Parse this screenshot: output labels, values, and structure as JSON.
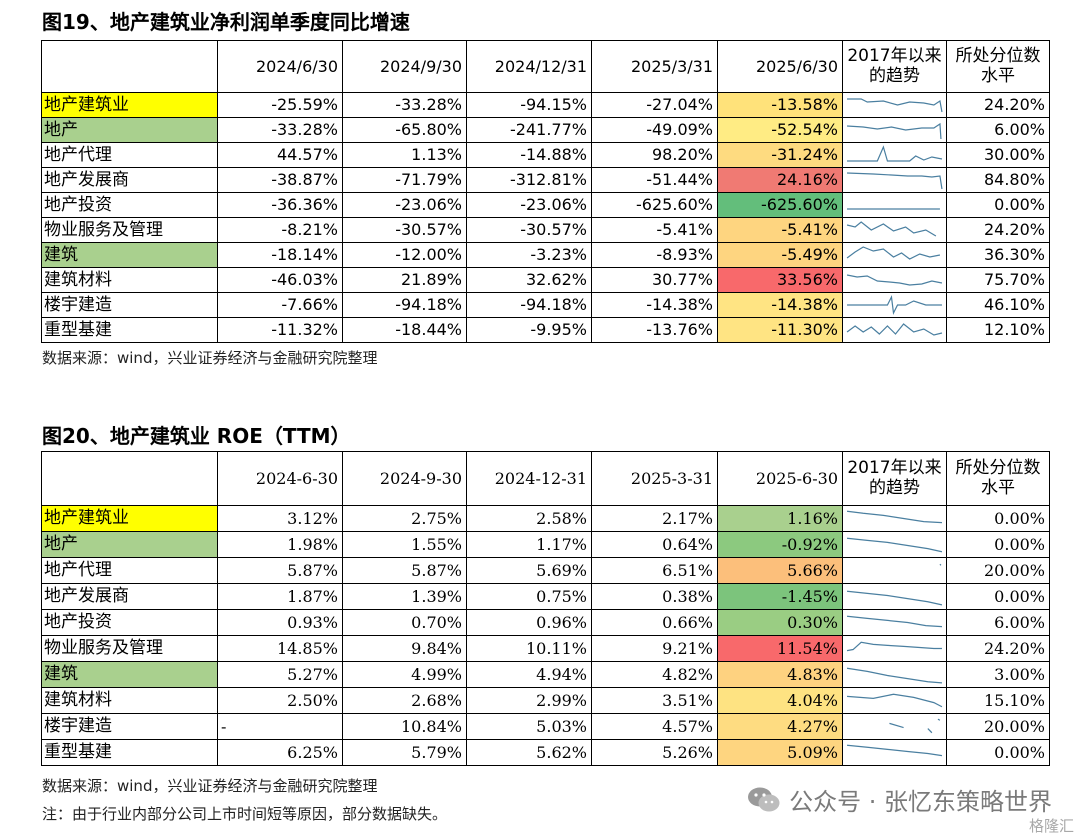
{
  "table1": {
    "title": "图19、地产建筑业净利润单季度同比增速",
    "columns": [
      "2024/6/30",
      "2024/9/30",
      "2024/12/31",
      "2025/3/31",
      "2025/6/30"
    ],
    "trend_header": "2017年以来的趋势",
    "pct_header": "所处分位数水平",
    "rows": [
      {
        "name": "地产建筑业",
        "hl": "yellow",
        "v": [
          "-25.59%",
          "-33.28%",
          "-94.15%",
          "-27.04%",
          "-13.58%"
        ],
        "color": "#ffe27a",
        "pct": "24.20%"
      },
      {
        "name": "地产",
        "hl": "green",
        "v": [
          "-33.28%",
          "-65.80%",
          "-241.77%",
          "-49.09%",
          "-52.54%"
        ],
        "color": "#ffec84",
        "pct": "6.00%"
      },
      {
        "name": "地产代理",
        "hl": "",
        "v": [
          "44.57%",
          "1.13%",
          "-14.88%",
          "98.20%",
          "-31.24%"
        ],
        "color": "#fedb80",
        "pct": "30.00%"
      },
      {
        "name": "地产发展商",
        "hl": "",
        "v": [
          "-38.87%",
          "-71.79%",
          "-312.81%",
          "-51.44%",
          "24.16%"
        ],
        "color": "#f07a73",
        "pct": "84.80%"
      },
      {
        "name": "地产投资",
        "hl": "",
        "v": [
          "-36.36%",
          "-23.06%",
          "-23.06%",
          "-625.60%",
          "-625.60%"
        ],
        "color": "#63be7b",
        "pct": "0.00%"
      },
      {
        "name": "物业服务及管理",
        "hl": "",
        "v": [
          "-8.21%",
          "-30.57%",
          "-30.57%",
          "-5.41%",
          "-5.41%"
        ],
        "color": "#fed580",
        "pct": "24.20%"
      },
      {
        "name": "建筑",
        "hl": "green",
        "v": [
          "-18.14%",
          "-12.00%",
          "-3.23%",
          "-8.93%",
          "-5.49%"
        ],
        "color": "#fed580",
        "pct": "36.30%"
      },
      {
        "name": "建筑材料",
        "hl": "",
        "v": [
          "-46.03%",
          "21.89%",
          "32.62%",
          "30.77%",
          "33.56%"
        ],
        "color": "#f8696b",
        "pct": "75.70%"
      },
      {
        "name": "楼宇建造",
        "hl": "",
        "v": [
          "-7.66%",
          "-94.18%",
          "-94.18%",
          "-14.38%",
          "-14.38%"
        ],
        "color": "#ffe483",
        "pct": "46.10%"
      },
      {
        "name": "重型基建",
        "hl": "",
        "v": [
          "-11.32%",
          "-18.44%",
          "-9.95%",
          "-13.76%",
          "-11.30%"
        ],
        "color": "#ffe483",
        "pct": "12.10%"
      }
    ],
    "source": "数据来源：wind，兴业证券经济与金融研究院整理"
  },
  "table2": {
    "title": "图20、地产建筑业 ROE（TTM）",
    "columns": [
      "2024-6-30",
      "2024-9-30",
      "2024-12-31",
      "2025-3-31",
      "2025-6-30"
    ],
    "trend_header": "2017年以来的趋势",
    "pct_header": "所处分位数水平",
    "rows": [
      {
        "name": "地产建筑业",
        "hl": "yellow",
        "v": [
          "3.12%",
          "2.75%",
          "2.58%",
          "2.17%",
          "1.16%"
        ],
        "color": "#a9d08e",
        "pct": "0.00%"
      },
      {
        "name": "地产",
        "hl": "green",
        "v": [
          "1.98%",
          "1.55%",
          "1.17%",
          "0.64%",
          "-0.92%"
        ],
        "color": "#8cc97f",
        "pct": "0.00%"
      },
      {
        "name": "地产代理",
        "hl": "",
        "v": [
          "5.87%",
          "5.87%",
          "5.69%",
          "6.51%",
          "5.66%"
        ],
        "color": "#fcbf7b",
        "pct": "20.00%"
      },
      {
        "name": "地产发展商",
        "hl": "",
        "v": [
          "1.87%",
          "1.39%",
          "0.75%",
          "0.38%",
          "-1.45%"
        ],
        "color": "#7cc47c",
        "pct": "0.00%"
      },
      {
        "name": "地产投资",
        "hl": "",
        "v": [
          "0.93%",
          "0.70%",
          "0.96%",
          "0.66%",
          "0.30%"
        ],
        "color": "#9acd83",
        "pct": "6.00%"
      },
      {
        "name": "物业服务及管理",
        "hl": "",
        "v": [
          "14.85%",
          "9.84%",
          "10.11%",
          "9.21%",
          "11.54%"
        ],
        "color": "#f8696b",
        "pct": "24.20%"
      },
      {
        "name": "建筑",
        "hl": "green",
        "v": [
          "5.27%",
          "4.99%",
          "4.94%",
          "4.82%",
          "4.83%"
        ],
        "color": "#fed280",
        "pct": "3.00%"
      },
      {
        "name": "建筑材料",
        "hl": "",
        "v": [
          "2.50%",
          "2.68%",
          "2.99%",
          "3.51%",
          "4.04%"
        ],
        "color": "#fee382",
        "pct": "15.10%"
      },
      {
        "name": "楼宇建造",
        "hl": "",
        "v": [
          "-",
          "10.84%",
          "5.03%",
          "4.57%",
          "4.27%"
        ],
        "color": "#fedc81",
        "pct": "20.00%"
      },
      {
        "name": "重型基建",
        "hl": "",
        "v": [
          "6.25%",
          "5.79%",
          "5.62%",
          "5.26%",
          "5.09%"
        ],
        "color": "#fed580",
        "pct": "0.00%"
      }
    ],
    "source": "数据来源：wind，兴业证券经济与金融研究院整理",
    "note": "注：由于行业内部分公司上市时间短等原因，部分数据缺失。"
  },
  "watermark": "公众号 · 张忆东策略世界",
  "watermark_icon": "wechat-icon",
  "corner_logo": "格隆汇",
  "sparkline_color": "#4a7fa0"
}
